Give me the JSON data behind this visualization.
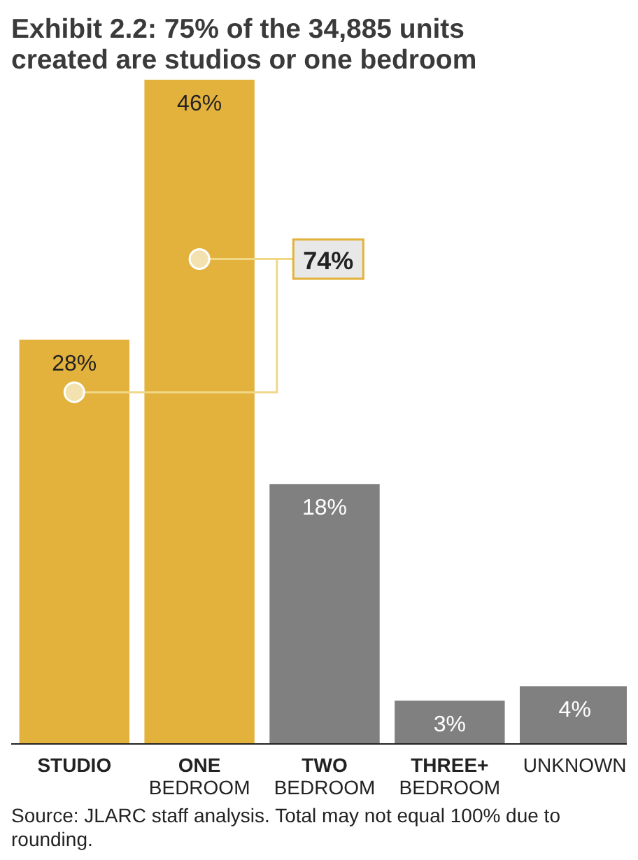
{
  "chart_data": {
    "type": "bar",
    "title": "Exhibit 2.2: 75% of the 34,885 units created are studios or one bedroom",
    "categories": [
      "STUDIO",
      "ONE BEDROOM",
      "TWO BEDROOM",
      "THREE+ BEDROOM",
      "UNKNOWN"
    ],
    "values": [
      28,
      46,
      18,
      3,
      4
    ],
    "colors": [
      "#e3b23c",
      "#e3b23c",
      "#808080",
      "#808080",
      "#808080"
    ],
    "value_labels": [
      "28%",
      "46%",
      "18%",
      "3%",
      "4%"
    ],
    "annotations": [
      "74%",
      "Source: JLARC staff analysis. Total may not equal 100% due to rounding."
    ]
  }
}
